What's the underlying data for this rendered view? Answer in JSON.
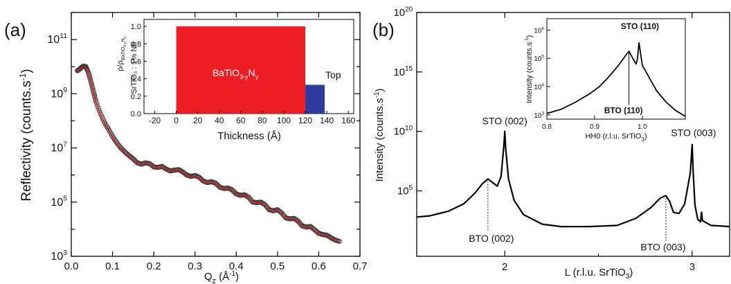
{
  "figure": {
    "panels": [
      {
        "label": "(a)"
      },
      {
        "label": "(b)"
      }
    ]
  },
  "chart_data": [
    {
      "id": "a_main",
      "type": "scatter",
      "xlabel": "Q_z (Å⁻¹)",
      "ylabel": "Reflectivity (counts.s⁻¹)",
      "ylog": true,
      "xlim": [
        0.0,
        0.7
      ],
      "ylim_exp": [
        3,
        12
      ],
      "xticks": [
        0.0,
        0.1,
        0.2,
        0.3,
        0.4,
        0.5,
        0.6,
        0.7
      ],
      "yticks_exp": [
        3,
        5,
        7,
        9,
        11
      ],
      "series": [
        {
          "kind": "data-points",
          "color": "#000000",
          "points_log": [
            [
              0.015,
              9.85
            ],
            [
              0.02,
              9.9
            ],
            [
              0.025,
              9.98
            ],
            [
              0.03,
              10.02
            ],
            [
              0.035,
              10.0
            ],
            [
              0.04,
              9.85
            ],
            [
              0.045,
              9.6
            ],
            [
              0.05,
              9.3
            ],
            [
              0.055,
              9.0
            ],
            [
              0.06,
              8.7
            ],
            [
              0.07,
              8.3
            ],
            [
              0.08,
              7.95
            ],
            [
              0.09,
              7.7
            ],
            [
              0.1,
              7.42
            ],
            [
              0.11,
              7.2
            ],
            [
              0.12,
              7.0
            ],
            [
              0.13,
              6.85
            ],
            [
              0.14,
              6.72
            ],
            [
              0.15,
              6.6
            ],
            [
              0.16,
              6.45
            ],
            [
              0.17,
              6.4
            ],
            [
              0.18,
              6.45
            ],
            [
              0.19,
              6.42
            ],
            [
              0.2,
              6.3
            ],
            [
              0.21,
              6.28
            ],
            [
              0.22,
              6.32
            ],
            [
              0.23,
              6.22
            ],
            [
              0.24,
              6.15
            ],
            [
              0.25,
              6.18
            ],
            [
              0.26,
              6.2
            ],
            [
              0.27,
              6.12
            ],
            [
              0.28,
              6.0
            ],
            [
              0.29,
              5.95
            ],
            [
              0.3,
              5.98
            ],
            [
              0.31,
              5.92
            ],
            [
              0.32,
              5.78
            ],
            [
              0.33,
              5.72
            ],
            [
              0.34,
              5.75
            ],
            [
              0.35,
              5.7
            ],
            [
              0.36,
              5.55
            ],
            [
              0.37,
              5.5
            ],
            [
              0.38,
              5.52
            ],
            [
              0.39,
              5.45
            ],
            [
              0.4,
              5.3
            ],
            [
              0.41,
              5.25
            ],
            [
              0.42,
              5.27
            ],
            [
              0.43,
              5.18
            ],
            [
              0.44,
              5.0
            ],
            [
              0.45,
              4.98
            ],
            [
              0.46,
              5.0
            ],
            [
              0.47,
              4.9
            ],
            [
              0.48,
              4.72
            ],
            [
              0.49,
              4.68
            ],
            [
              0.5,
              4.72
            ],
            [
              0.51,
              4.6
            ],
            [
              0.52,
              4.42
            ],
            [
              0.53,
              4.38
            ],
            [
              0.54,
              4.4
            ],
            [
              0.55,
              4.3
            ],
            [
              0.56,
              4.12
            ],
            [
              0.57,
              4.08
            ],
            [
              0.58,
              4.1
            ],
            [
              0.59,
              3.98
            ],
            [
              0.6,
              3.85
            ],
            [
              0.61,
              3.8
            ],
            [
              0.62,
              3.78
            ],
            [
              0.63,
              3.68
            ],
            [
              0.64,
              3.6
            ],
            [
              0.65,
              3.55
            ]
          ]
        },
        {
          "kind": "fit-line",
          "color": "#d61f1f"
        }
      ]
    },
    {
      "id": "a_inset",
      "type": "bar",
      "xlabel": "Thickness (Å)",
      "ylabel": "ρ/ρ_BaTiO3-yNy",
      "xlim": [
        -30,
        165
      ],
      "ylim": [
        0.0,
        1.08
      ],
      "xticks": [
        -20,
        0,
        20,
        40,
        60,
        80,
        100,
        120,
        140,
        160
      ],
      "yticks": [
        "0.0",
        "0.2",
        "0.4",
        "0.6",
        "0.8",
        "1.0"
      ],
      "blocks": [
        {
          "label_main": "BaTiO",
          "label_sub1": "3-y",
          "label_mid": "N",
          "label_sub2": "y",
          "x0": 0,
          "x1": 120,
          "value": 1.0,
          "color": "#ee1c24"
        },
        {
          "label": "Top",
          "x0": 120,
          "x1": 138,
          "value": 0.33,
          "color": "#2e3a9c"
        }
      ],
      "substrate_label": "SrTiO₃ : 1% Nb"
    },
    {
      "id": "b_main",
      "type": "line",
      "xlabel_main": "L (r.l.u. SrTiO",
      "xlabel_sub": "3",
      "xlabel_end": ")",
      "ylabel": "Intensity (counts.s⁻¹)",
      "ylog": true,
      "xlim": [
        1.53,
        3.2
      ],
      "ylim_exp": [
        -0.5,
        20
      ],
      "xticks": [
        2,
        3
      ],
      "yticks_exp": [
        5,
        10,
        15,
        20
      ],
      "annotations": [
        {
          "text": "STO (002)",
          "x": 2.0
        },
        {
          "text": "BTO (002)",
          "x": 1.91
        },
        {
          "text": "STO (003)",
          "x": 3.0
        },
        {
          "text": "BTO (003)",
          "x": 2.86
        }
      ],
      "series": [
        {
          "kind": "line",
          "color": "#000000",
          "points_log": [
            [
              1.53,
              2.8
            ],
            [
              1.6,
              2.9
            ],
            [
              1.7,
              3.3
            ],
            [
              1.78,
              3.9
            ],
            [
              1.84,
              4.8
            ],
            [
              1.88,
              5.6
            ],
            [
              1.91,
              6.0
            ],
            [
              1.935,
              5.7
            ],
            [
              1.96,
              5.4
            ],
            [
              1.98,
              6.2
            ],
            [
              1.995,
              8.8
            ],
            [
              2.0,
              10.0
            ],
            [
              2.005,
              8.5
            ],
            [
              2.02,
              6.0
            ],
            [
              2.05,
              4.2
            ],
            [
              2.1,
              3.0
            ],
            [
              2.2,
              2.2
            ],
            [
              2.3,
              2.0
            ],
            [
              2.45,
              2.0
            ],
            [
              2.6,
              2.1
            ],
            [
              2.7,
              2.7
            ],
            [
              2.78,
              3.6
            ],
            [
              2.83,
              4.4
            ],
            [
              2.86,
              4.6
            ],
            [
              2.88,
              4.1
            ],
            [
              2.9,
              3.2
            ],
            [
              2.93,
              3.1
            ],
            [
              2.96,
              3.9
            ],
            [
              2.99,
              6.5
            ],
            [
              3.0,
              8.9
            ],
            [
              3.005,
              6.8
            ],
            [
              3.015,
              3.8
            ],
            [
              3.03,
              2.6
            ],
            [
              3.045,
              2.4
            ],
            [
              3.05,
              3.2
            ],
            [
              3.055,
              2.5
            ],
            [
              3.1,
              2.1
            ],
            [
              3.2,
              2.0
            ]
          ]
        }
      ]
    },
    {
      "id": "b_inset",
      "type": "line",
      "xlabel_main": "HH0 (r.l.u. SrTiO",
      "xlabel_sub": "3",
      "xlabel_end": ")",
      "ylabel": "Intensity (counts.s⁻¹)",
      "ylog": true,
      "xlim": [
        0.8,
        1.09
      ],
      "ylim_exp": [
        2.85,
        6.4
      ],
      "xticks": [
        0.8,
        0.9,
        1.0
      ],
      "yticks_exp": [
        3,
        4,
        5,
        6
      ],
      "annotations": [
        {
          "text": "STO (110)",
          "x": 0.995
        },
        {
          "text": "BTO (110)",
          "x": 0.972
        }
      ],
      "series": [
        {
          "kind": "line",
          "color": "#000000",
          "points_log": [
            [
              0.8,
              3.05
            ],
            [
              0.83,
              3.2
            ],
            [
              0.86,
              3.45
            ],
            [
              0.89,
              3.75
            ],
            [
              0.91,
              4.0
            ],
            [
              0.93,
              4.35
            ],
            [
              0.95,
              4.75
            ],
            [
              0.965,
              5.1
            ],
            [
              0.972,
              5.25
            ],
            [
              0.98,
              5.0
            ],
            [
              0.987,
              4.8
            ],
            [
              0.99,
              5.0
            ],
            [
              0.993,
              5.55
            ],
            [
              0.996,
              5.2
            ],
            [
              1.0,
              4.75
            ],
            [
              1.01,
              4.45
            ],
            [
              1.03,
              3.85
            ],
            [
              1.05,
              3.45
            ],
            [
              1.07,
              3.15
            ],
            [
              1.09,
              2.95
            ]
          ]
        }
      ]
    }
  ]
}
